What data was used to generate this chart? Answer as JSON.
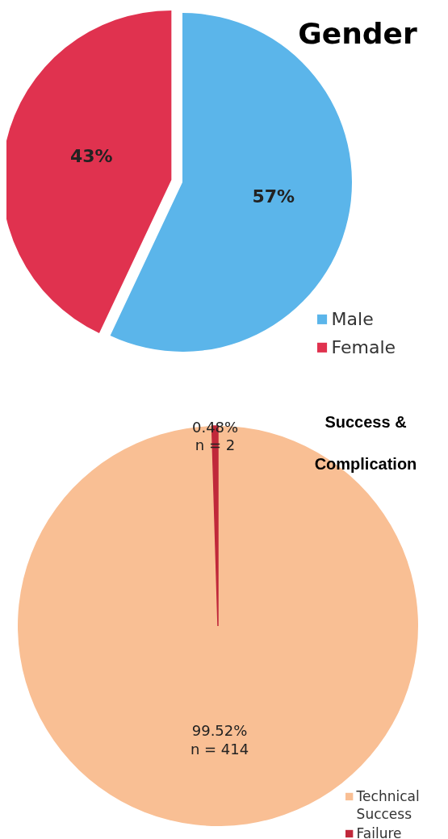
{
  "chart_data": [
    {
      "type": "pie",
      "title": "Gender",
      "categories": [
        "Male",
        "Female"
      ],
      "values": [
        57,
        43
      ],
      "colors": [
        "#5bb5ea",
        "#e0324f"
      ],
      "value_labels": [
        "57%",
        "43%"
      ],
      "legend": "bottom right"
    },
    {
      "type": "pie",
      "title": "Success & Complication",
      "categories": [
        "Technical Success",
        "Failure"
      ],
      "values": [
        99.52,
        0.48
      ],
      "colors": [
        "#f9bf94",
        "#c0283a"
      ],
      "value_labels": [
        "99.52%\nn = 414",
        "0.48%\nn = 2"
      ],
      "legend": "bottom right"
    }
  ]
}
